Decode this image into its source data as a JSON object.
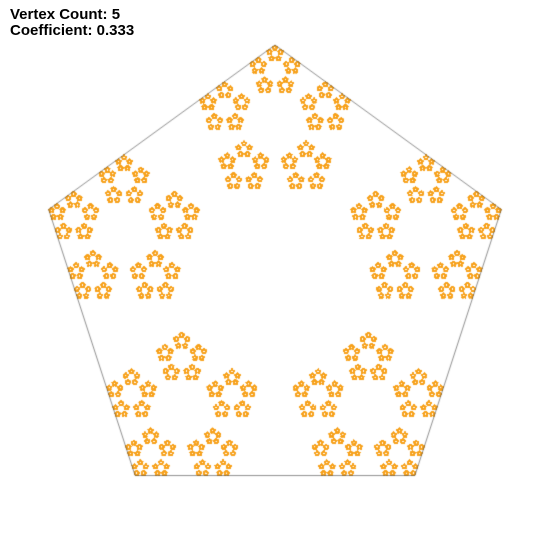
{
  "labels": {
    "vertex_count_prefix": "Vertex Count: ",
    "vertex_count": "5",
    "coefficient_prefix": "Coefficient: ",
    "coefficient": "0.333"
  },
  "fractal": {
    "vertices": 5,
    "coefficient": 0.333,
    "point_color": "#f7a11a",
    "outline_color": "#444444",
    "background": "#ffffff"
  }
}
